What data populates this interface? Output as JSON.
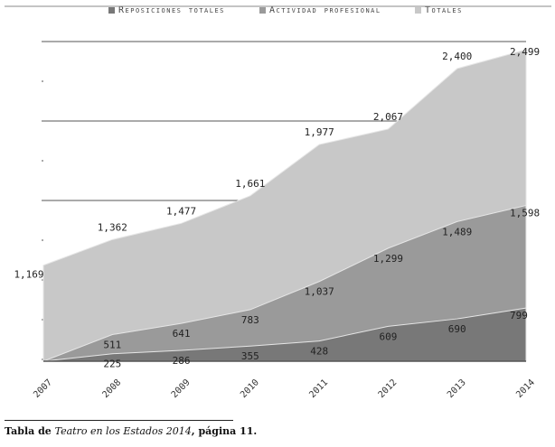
{
  "chart_data": {
    "type": "area",
    "title": "",
    "xlabel": "",
    "ylabel": "",
    "categories": [
      "2007",
      "2008",
      "2009",
      "2010",
      "2011",
      "2012",
      "2013",
      "2014"
    ],
    "series": [
      {
        "name": "Totales",
        "color": "#c8c8c8",
        "values": [
          1169,
          1362,
          1477,
          1661,
          1977,
          2067,
          2400,
          2499
        ],
        "labels": [
          "1,169",
          "1,362",
          "1,477",
          "1,661",
          "1,977",
          "2,067",
          "2,400",
          "2,499"
        ]
      },
      {
        "name": "Actividad profesional",
        "color": "#9a9a9a",
        "values": [
          0,
          511,
          641,
          783,
          1037,
          1299,
          1489,
          1598
        ],
        "labels": [
          "",
          "511",
          "641",
          "783",
          "1,037",
          "1,299",
          "1,489",
          "1,598"
        ]
      },
      {
        "name": "Reposiciones totales",
        "color": "#787878",
        "values": [
          0,
          225,
          286,
          355,
          428,
          609,
          690,
          799
        ],
        "labels": [
          "",
          "225",
          "286",
          "355",
          "428",
          "609",
          "690",
          "799"
        ]
      }
    ],
    "legend": [
      "Reposiciones totales",
      "Actividad profesional",
      "Totales"
    ],
    "legend_position": "top",
    "ylim": [
      0,
      2600
    ],
    "grid": true
  },
  "caption": {
    "prefix": "Tabla de ",
    "italic": "Teatro en los Estados 2014",
    "suffix": ", página 11."
  }
}
